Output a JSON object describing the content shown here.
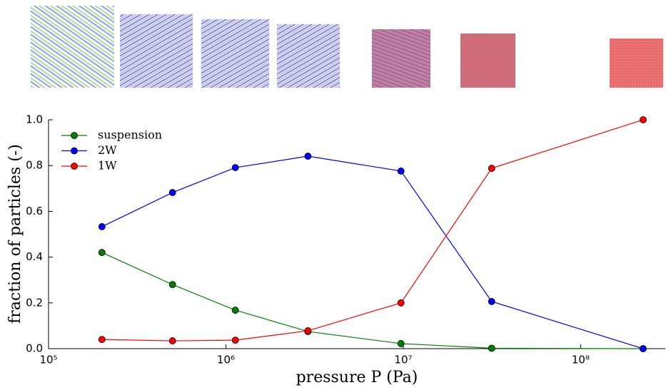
{
  "chart_data": {
    "type": "line",
    "x_label": "pressure P (Pa)",
    "y_label": "fraction of particles (-)",
    "log_x": true,
    "x": [
      200000,
      500000,
      1130000,
      2900000,
      9700000,
      31500000,
      225000000
    ],
    "series": [
      {
        "name": "suspension",
        "color": "#008000",
        "values": [
          0.42,
          0.28,
          0.168,
          0.075,
          0.022,
          0.002,
          0.0
        ]
      },
      {
        "name": "2W",
        "color": "#0000ff",
        "values": [
          0.533,
          0.682,
          0.791,
          0.841,
          0.776,
          0.206,
          0.0
        ]
      },
      {
        "name": "1W",
        "color": "#ff0000",
        "values": [
          0.04,
          0.034,
          0.037,
          0.078,
          0.2,
          0.788,
          1.0
        ]
      }
    ],
    "xlim": [
      100000,
      300000000
    ],
    "xticks": [
      {
        "value": 100000,
        "label": "10⁵"
      },
      {
        "value": 1000000,
        "label": "10⁶"
      },
      {
        "value": 10000000,
        "label": "10⁷"
      },
      {
        "value": 100000000,
        "label": "10⁸"
      }
    ],
    "ylim": [
      0,
      1
    ],
    "yticks": [
      {
        "value": 0,
        "label": "0.0"
      },
      0.2,
      0.4,
      0.6,
      0.8,
      {
        "value": 1,
        "label": "1.0"
      }
    ],
    "legend": "upper-left",
    "grid": false
  }
}
